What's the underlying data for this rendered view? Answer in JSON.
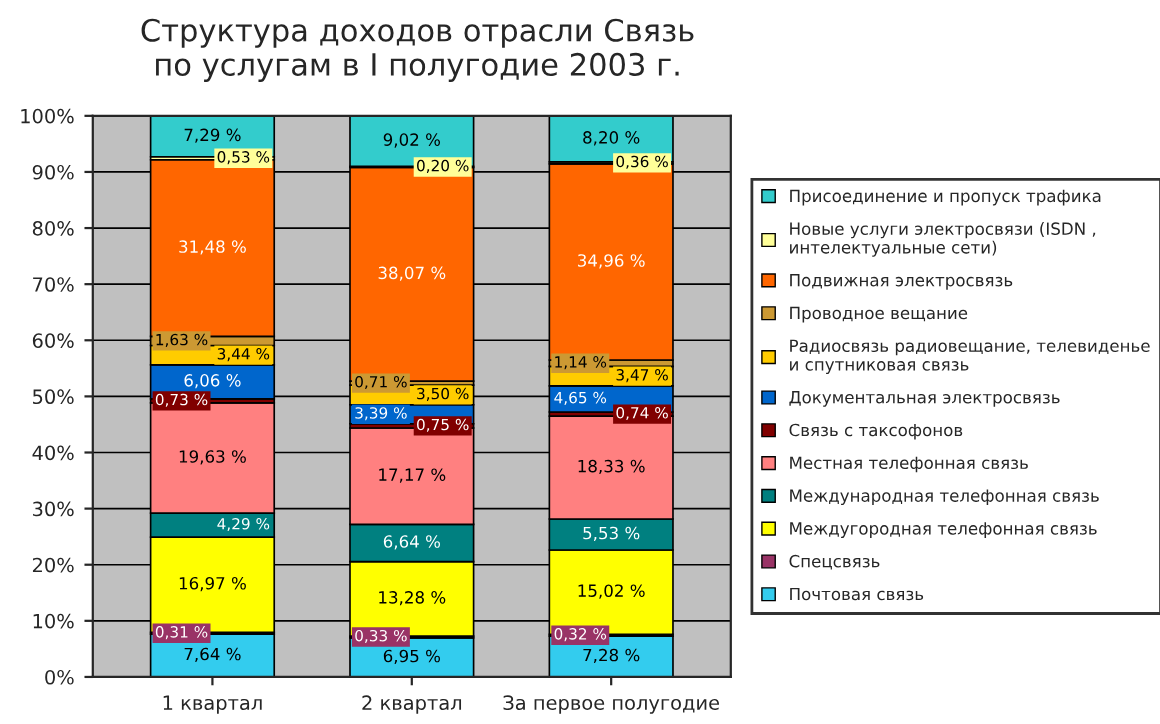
{
  "chart_data": {
    "type": "bar",
    "stacked": true,
    "title": "Структура доходов отрасли Связь\nпо услугам в I полугодие 2003 г.",
    "categories": [
      "1 квартал",
      "2 квартал",
      "За первое полугодие"
    ],
    "ylim": [
      0,
      100
    ],
    "yticks": [
      {
        "value": 0,
        "label": "0%"
      },
      {
        "value": 10,
        "label": "10%"
      },
      {
        "value": 20,
        "label": "20%"
      },
      {
        "value": 30,
        "label": "30%"
      },
      {
        "value": 40,
        "label": "40%"
      },
      {
        "value": 50,
        "label": "50%"
      },
      {
        "value": 60,
        "label": "60%"
      },
      {
        "value": 70,
        "label": "70%"
      },
      {
        "value": 80,
        "label": "80%"
      },
      {
        "value": 90,
        "label": "90%"
      },
      {
        "value": 100,
        "label": "100%"
      }
    ],
    "grid": "y",
    "legend": "right",
    "series": [
      {
        "name": "Почтовая связь",
        "color": "#33ccee",
        "values": [
          7.64,
          6.95,
          7.28
        ],
        "value_labels": [
          "7,64 %",
          "6,95 %",
          "7,28 %"
        ]
      },
      {
        "name": "Спецсвязь",
        "color": "#993366",
        "values": [
          0.31,
          0.33,
          0.32
        ],
        "value_labels": [
          "0,31 %",
          "0,33 %",
          "0,32 %"
        ]
      },
      {
        "name": "Междугородная телефонная связь",
        "color": "#ffff00",
        "values": [
          16.97,
          13.28,
          15.02
        ],
        "value_labels": [
          "16,97 %",
          "13,28 %",
          "15,02 %"
        ]
      },
      {
        "name": "Международная телефонная связь",
        "color": "#008080",
        "values": [
          4.29,
          6.64,
          5.53
        ],
        "value_labels": [
          "4,29 %",
          "6,64 %",
          "5,53 %"
        ]
      },
      {
        "name": "Местная телефонная связь",
        "color": "#ff8080",
        "values": [
          19.63,
          17.17,
          18.33
        ],
        "value_labels": [
          "19,63 %",
          "17,17 %",
          "18,33 %"
        ]
      },
      {
        "name": "Связь с таксофонов",
        "color": "#800000",
        "values": [
          0.73,
          0.75,
          0.74
        ],
        "value_labels": [
          "0,73 %",
          "0,75 %",
          "0,74 %"
        ]
      },
      {
        "name": "Документальная электросвязь",
        "color": "#0066cc",
        "values": [
          6.06,
          3.39,
          4.65
        ],
        "value_labels": [
          "6,06 %",
          "3,39 %",
          "4,65 %"
        ]
      },
      {
        "name": "Радиосвязь радиовещание, телевиденье\nи спутниковая связь",
        "color": "#ffcc00",
        "values": [
          3.44,
          3.5,
          3.47
        ],
        "value_labels": [
          "3,44 %",
          "3,50 %",
          "3,47 %"
        ]
      },
      {
        "name": "Проводное вещание",
        "color": "#cc9933",
        "values": [
          1.63,
          0.71,
          1.14
        ],
        "value_labels": [
          "1,63 %",
          "0,71 %",
          "1,14 %"
        ]
      },
      {
        "name": "Подвижная электросвязь",
        "color": "#ff6600",
        "values": [
          31.48,
          38.07,
          34.96
        ],
        "value_labels": [
          "31,48 %",
          "38,07 %",
          "34,96 %"
        ]
      },
      {
        "name": "Новые услуги электросвязи (ISDN ,\nинтелектуальные сети)",
        "color": "#ffff99",
        "values": [
          0.53,
          0.2,
          0.36
        ],
        "value_labels": [
          "0,53 %",
          "0,20 %",
          "0,36 %"
        ]
      },
      {
        "name": "Присоединение и пропуск трафика",
        "color": "#33cccc",
        "values": [
          7.29,
          9.02,
          8.2
        ],
        "value_labels": [
          "7,29 %",
          "9,02 %",
          "8,20 %"
        ]
      }
    ]
  }
}
